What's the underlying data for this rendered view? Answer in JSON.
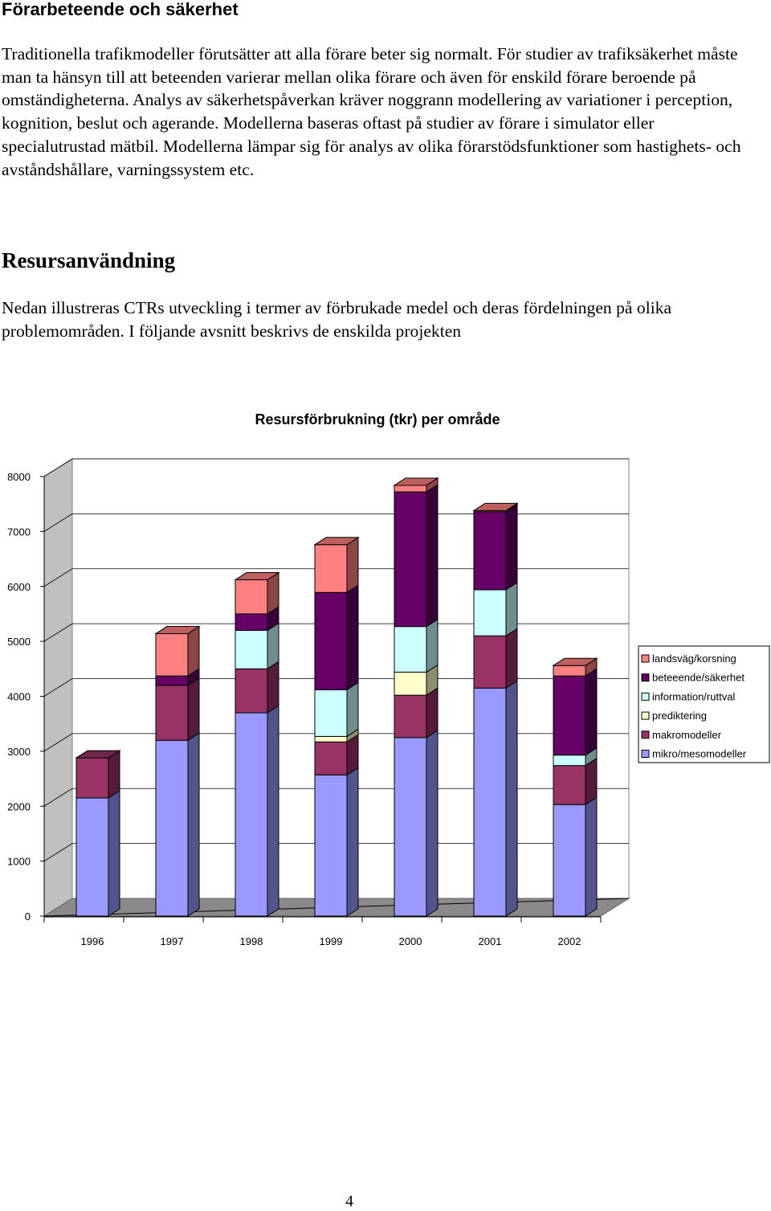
{
  "section1": {
    "heading": "Förarbeteende och säkerhet",
    "paragraph": "Traditionella trafikmodeller förutsätter att alla förare beter sig normalt. För studier av trafiksäkerhet måste man ta hänsyn till att beteenden varierar mellan olika förare och även för enskild förare beroende på omständigheterna. Analys av säkerhetspåverkan kräver noggrann modellering av variationer i perception, kognition, beslut och agerande. Modellerna baseras oftast på studier av förare i simulator eller specialutrustad mätbil. Modellerna lämpar sig för analys av olika förarstödsfunktioner som hastighets- och avståndshållare, varningssystem etc."
  },
  "section2": {
    "heading": "Resursanvändning",
    "paragraph": "Nedan illustreras CTRs utveckling i termer av förbrukade medel och deras fördelningen på olika problemområden. I följande avsnitt beskrivs de enskilda projekten"
  },
  "chart_data": {
    "type": "bar",
    "stacked": true,
    "three_d": true,
    "title": "Resursförbrukning (tkr) per område",
    "xlabel": "",
    "ylabel": "",
    "categories": [
      "1996",
      "1997",
      "1998",
      "1999",
      "2000",
      "2001",
      "2002"
    ],
    "ylim": [
      0,
      8000
    ],
    "yticks": [
      0,
      1000,
      2000,
      3000,
      4000,
      5000,
      6000,
      7000,
      8000
    ],
    "grid": true,
    "legend_position": "right",
    "series": [
      {
        "name": "mikro/mesomodeller",
        "color": "#9999ff",
        "values": [
          2150,
          3200,
          3700,
          2570,
          3250,
          4150,
          2030
        ]
      },
      {
        "name": "makromodeller",
        "color": "#993366",
        "values": [
          730,
          1000,
          800,
          600,
          770,
          950,
          710
        ]
      },
      {
        "name": "prediktering",
        "color": "#ffffcc",
        "values": [
          0,
          0,
          0,
          100,
          420,
          0,
          0
        ]
      },
      {
        "name": "information/ruttval",
        "color": "#ccffff",
        "values": [
          0,
          0,
          700,
          850,
          830,
          840,
          190
        ]
      },
      {
        "name": "beteeende/säkerhet",
        "color": "#660066",
        "values": [
          0,
          170,
          300,
          1770,
          2450,
          1420,
          1440
        ]
      },
      {
        "name": "landsväg/korsning",
        "color": "#ff8080",
        "values": [
          0,
          770,
          620,
          870,
          120,
          20,
          190
        ]
      }
    ],
    "legend_order": [
      "landsväg/korsning",
      "beteeende/säkerhet",
      "information/ruttval",
      "prediktering",
      "makromodeller",
      "mikro/mesomodeller"
    ]
  },
  "page_number": "4"
}
